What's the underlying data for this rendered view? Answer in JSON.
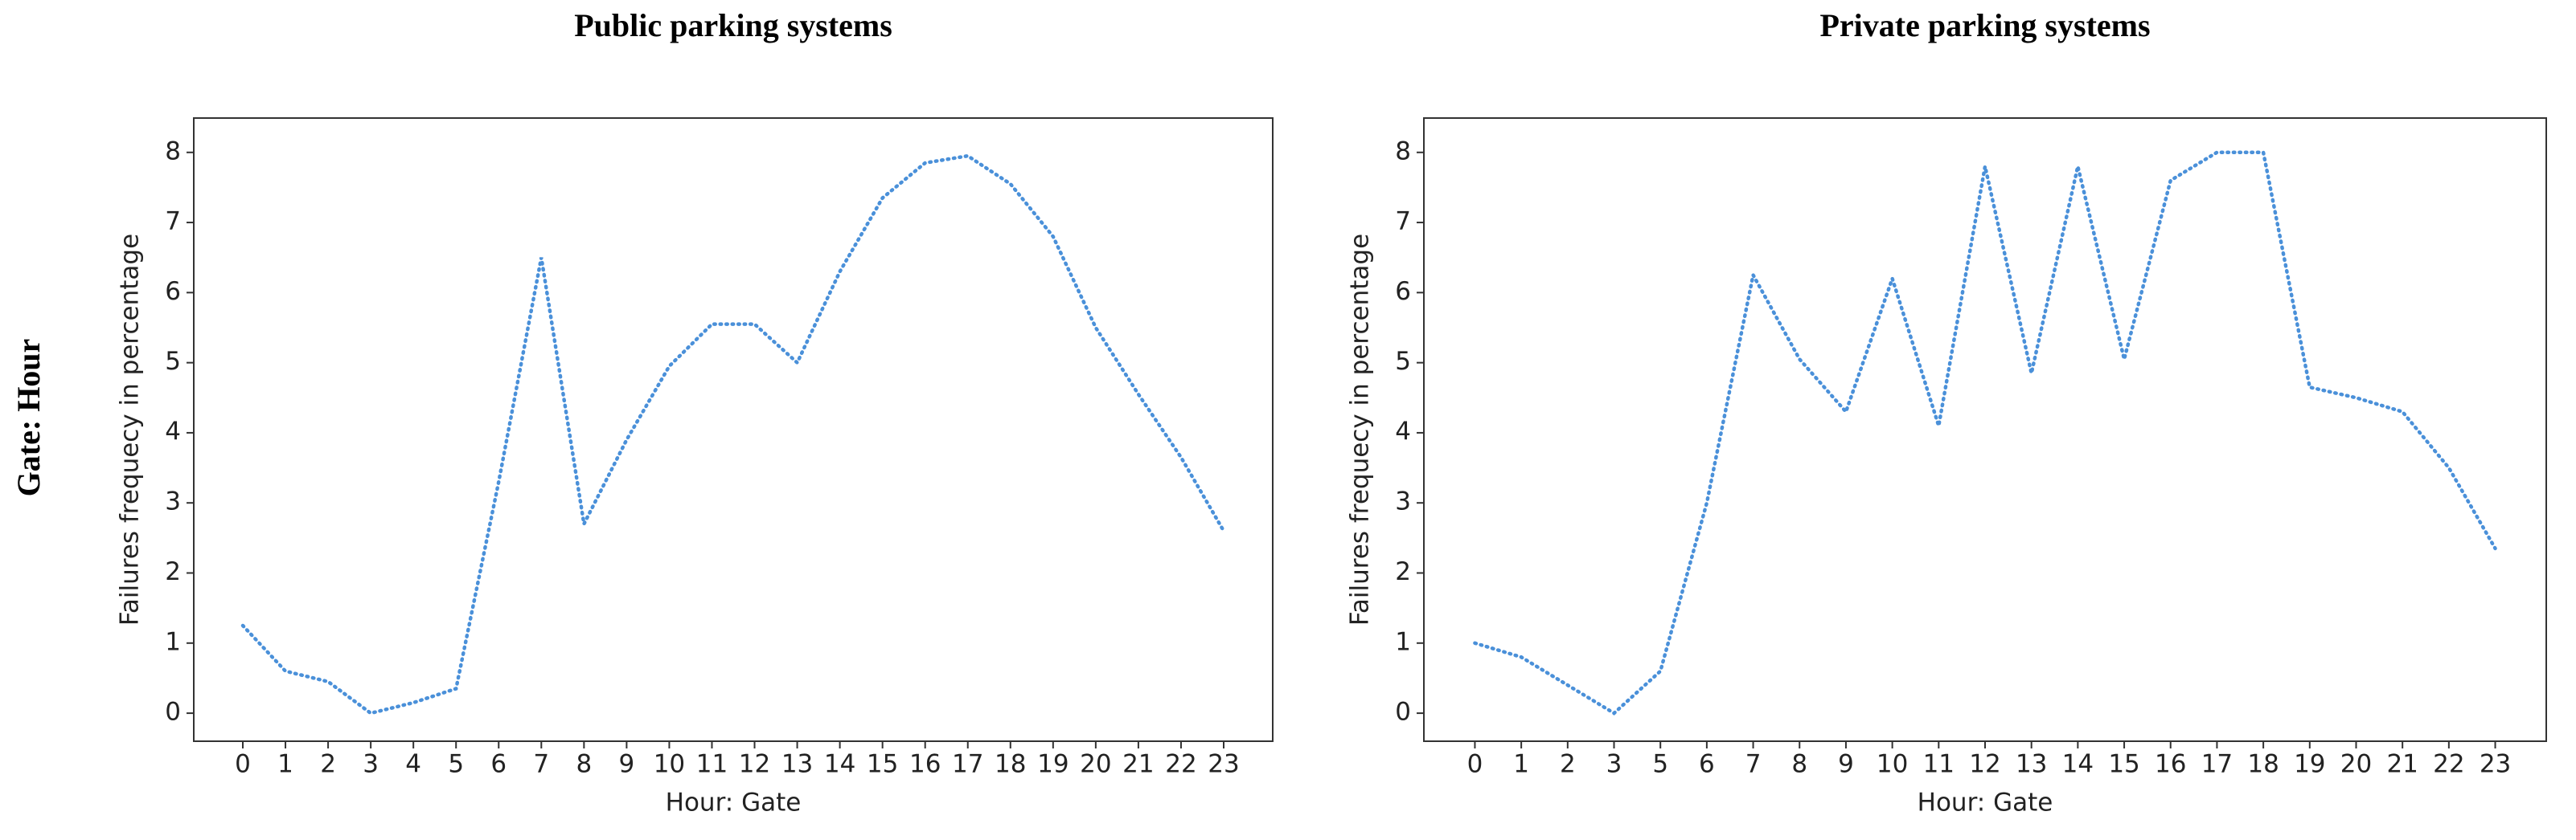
{
  "row_label": "Gate: Hour",
  "chart_data": [
    {
      "type": "line",
      "title": "Public parking systems",
      "xlabel": "Hour: Gate",
      "ylabel": "Failures frequecy in percentage",
      "categories": [
        "0",
        "1",
        "2",
        "3",
        "4",
        "5",
        "6",
        "7",
        "8",
        "9",
        "10",
        "11",
        "12",
        "13",
        "14",
        "15",
        "16",
        "17",
        "18",
        "19",
        "20",
        "21",
        "22",
        "23"
      ],
      "values": [
        1.25,
        0.6,
        0.45,
        0.0,
        0.15,
        0.35,
        3.3,
        6.5,
        2.7,
        3.9,
        4.95,
        5.55,
        5.55,
        5.0,
        6.3,
        7.35,
        7.85,
        7.95,
        7.55,
        6.8,
        5.5,
        4.55,
        3.65,
        2.6
      ],
      "color": "#4a90d9",
      "ylim": [
        -0.4,
        8.49
      ],
      "yticks": [
        0,
        1,
        2,
        3,
        4,
        5,
        6,
        7,
        8
      ]
    },
    {
      "type": "line",
      "title": "Private parking systems",
      "xlabel": "Hour: Gate",
      "ylabel": "Failures frequecy in percentage",
      "categories": [
        "0",
        "1",
        "2",
        "3",
        "5",
        "6",
        "7",
        "8",
        "9",
        "10",
        "11",
        "12",
        "13",
        "14",
        "15",
        "16",
        "17",
        "18",
        "19",
        "20",
        "21",
        "22",
        "23"
      ],
      "values": [
        1.0,
        0.8,
        0.4,
        0.0,
        0.6,
        3.0,
        6.25,
        5.05,
        4.3,
        6.2,
        4.1,
        7.8,
        4.85,
        7.8,
        5.05,
        7.6,
        8.0,
        8.0,
        4.65,
        4.5,
        4.3,
        3.5,
        2.35
      ],
      "color": "#4a90d9",
      "ylim": [
        -0.4,
        8.49
      ],
      "yticks": [
        0,
        1,
        2,
        3,
        4,
        5,
        6,
        7,
        8
      ]
    }
  ]
}
